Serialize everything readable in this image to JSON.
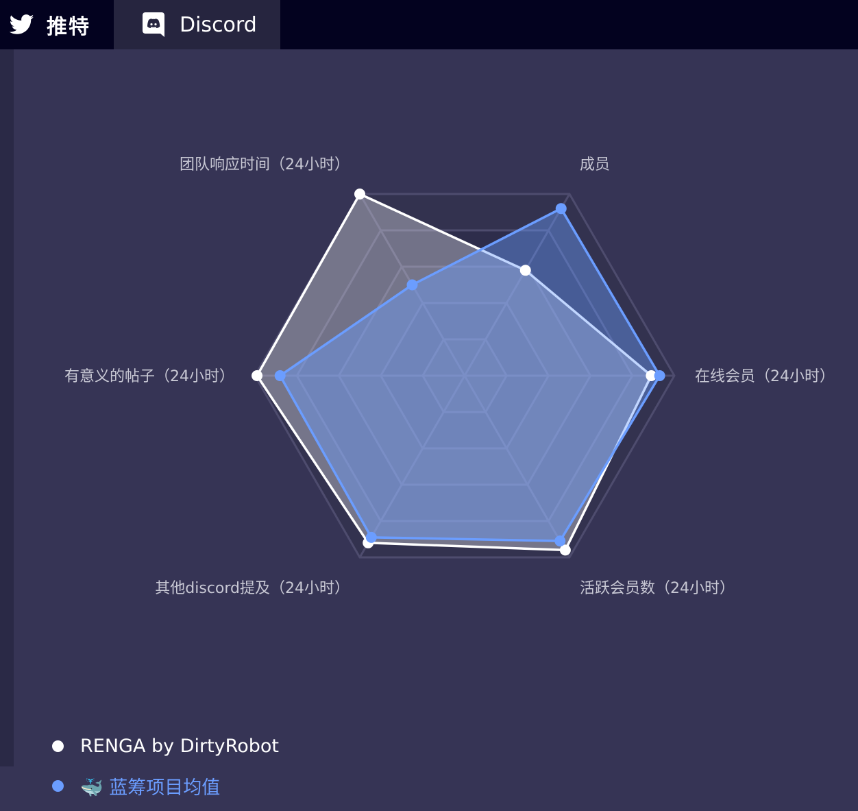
{
  "tabs": [
    {
      "label": "推特",
      "icon": "twitter-icon"
    },
    {
      "label": "Discord",
      "icon": "discord-icon",
      "active": true
    }
  ],
  "colors": {
    "series_0": "#ffffff",
    "series_1": "#6b9dff",
    "grid": "#4e4c6e"
  },
  "chart_data": {
    "type": "radar",
    "title": "",
    "indicators": [
      "成员",
      "在线会员（24小时）",
      "活跃会员数（24小时）",
      "其他discord提及（24小时）",
      "有意义的帖子（24小时）",
      "团队响应时间（24小时）"
    ],
    "max": 100,
    "grid": true,
    "series": [
      {
        "name": "RENGA by DirtyRobot",
        "values": [
          58,
          89,
          96,
          92,
          99,
          100
        ]
      },
      {
        "name": "🐳 蓝筹项目均值",
        "values": [
          92,
          93,
          91,
          89,
          88,
          50
        ]
      }
    ],
    "legend_position": "bottom-left"
  }
}
